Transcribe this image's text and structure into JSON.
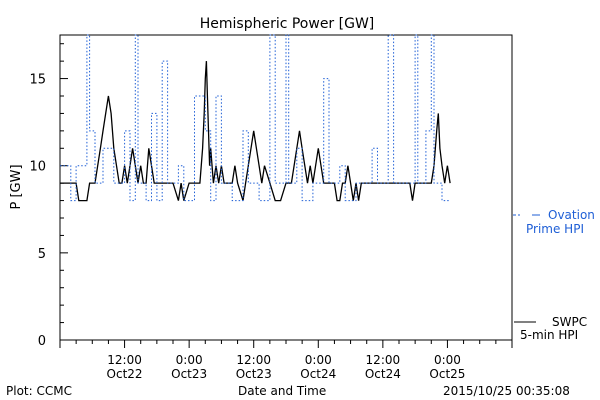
{
  "chart_data": {
    "type": "line",
    "title": "Hemispheric Power [GW]",
    "xlabel": "Date and Time",
    "ylabel": "P [GW]",
    "ylim": [
      0,
      17.5
    ],
    "xlim_hours": [
      0,
      84
    ],
    "y_ticks": [
      "0",
      "5",
      "10",
      "15"
    ],
    "x_ticks": [
      {
        "hour": 12,
        "time": "12:00",
        "date": "Oct22"
      },
      {
        "hour": 24,
        "time": "0:00",
        "date": "Oct23"
      },
      {
        "hour": 36,
        "time": "12:00",
        "date": "Oct23"
      },
      {
        "hour": 48,
        "time": "0:00",
        "date": "Oct24"
      },
      {
        "hour": 60,
        "time": "12:00",
        "date": "Oct24"
      },
      {
        "hour": 72,
        "time": "0:00",
        "date": "Oct25"
      }
    ],
    "grid": false,
    "legend_placement": "right",
    "series": [
      {
        "name_lines": [
          "SWPC",
          "5-min HPI"
        ],
        "color": "#000000",
        "style": "solid",
        "points": [
          [
            0,
            9
          ],
          [
            3,
            9
          ],
          [
            3.5,
            8
          ],
          [
            5,
            8
          ],
          [
            5.5,
            9
          ],
          [
            6.5,
            9
          ],
          [
            7,
            10
          ],
          [
            7.5,
            11
          ],
          [
            8,
            12
          ],
          [
            8.5,
            13
          ],
          [
            9,
            14
          ],
          [
            9.5,
            13
          ],
          [
            10,
            11
          ],
          [
            10.5,
            10
          ],
          [
            11,
            9
          ],
          [
            11.5,
            9
          ],
          [
            12,
            10
          ],
          [
            12.5,
            9
          ],
          [
            13,
            10
          ],
          [
            13.5,
            11
          ],
          [
            14,
            10
          ],
          [
            14.5,
            9
          ],
          [
            15,
            10
          ],
          [
            15.5,
            9
          ],
          [
            16,
            9
          ],
          [
            16.5,
            11
          ],
          [
            17,
            10
          ],
          [
            17.5,
            9
          ],
          [
            18,
            9
          ],
          [
            18.5,
            9
          ],
          [
            19,
            9
          ],
          [
            20,
            9
          ],
          [
            21,
            9
          ],
          [
            22,
            8
          ],
          [
            22.5,
            9
          ],
          [
            23,
            8
          ],
          [
            24,
            9
          ],
          [
            25,
            9
          ],
          [
            26,
            9
          ],
          [
            26.5,
            11
          ],
          [
            26.8,
            13
          ],
          [
            27,
            15
          ],
          [
            27.2,
            16
          ],
          [
            27.4,
            14
          ],
          [
            27.6,
            12
          ],
          [
            27.8,
            10
          ],
          [
            28,
            11
          ],
          [
            28.5,
            9
          ],
          [
            29,
            10
          ],
          [
            29.5,
            9
          ],
          [
            30,
            10
          ],
          [
            30.5,
            9
          ],
          [
            31,
            9
          ],
          [
            32,
            9
          ],
          [
            32.5,
            10
          ],
          [
            33,
            9
          ],
          [
            34,
            8
          ],
          [
            34.5,
            9
          ],
          [
            35,
            10
          ],
          [
            35.5,
            11
          ],
          [
            36,
            12
          ],
          [
            36.5,
            11
          ],
          [
            37,
            10
          ],
          [
            37.5,
            9
          ],
          [
            38,
            10
          ],
          [
            39,
            9
          ],
          [
            40,
            8
          ],
          [
            41,
            8
          ],
          [
            42,
            9
          ],
          [
            43,
            9
          ],
          [
            43.5,
            10
          ],
          [
            44,
            11
          ],
          [
            44.5,
            12
          ],
          [
            45,
            11
          ],
          [
            45.5,
            10
          ],
          [
            46,
            9
          ],
          [
            46.5,
            10
          ],
          [
            47,
            9
          ],
          [
            48,
            11
          ],
          [
            48.5,
            10
          ],
          [
            49,
            9
          ],
          [
            50,
            9
          ],
          [
            51,
            9
          ],
          [
            51.5,
            8
          ],
          [
            52,
            8
          ],
          [
            52.5,
            9
          ],
          [
            53,
            9
          ],
          [
            53.5,
            10
          ],
          [
            54,
            9
          ],
          [
            54.5,
            8
          ],
          [
            55,
            9
          ],
          [
            55.5,
            8
          ],
          [
            56,
            9
          ],
          [
            57,
            9
          ],
          [
            58,
            9
          ],
          [
            60,
            9
          ],
          [
            62,
            9
          ],
          [
            64,
            9
          ],
          [
            65,
            9
          ],
          [
            65.5,
            8
          ],
          [
            66,
            9
          ],
          [
            67,
            9
          ],
          [
            68,
            9
          ],
          [
            69,
            9
          ],
          [
            69.5,
            10
          ],
          [
            70,
            12
          ],
          [
            70.3,
            13
          ],
          [
            70.6,
            11
          ],
          [
            71,
            10
          ],
          [
            71.5,
            9
          ],
          [
            72,
            10
          ],
          [
            72.5,
            9
          ]
        ]
      },
      {
        "name_lines": [
          "Ovation",
          "Prime HPI"
        ],
        "color": "#1f5fd6",
        "style": "dashed",
        "points": [
          [
            0,
            10
          ],
          [
            2,
            10
          ],
          [
            2,
            8
          ],
          [
            3,
            8
          ],
          [
            3,
            10
          ],
          [
            5,
            10
          ],
          [
            5,
            17.5
          ],
          [
            5.5,
            17.5
          ],
          [
            5.5,
            12
          ],
          [
            6.5,
            12
          ],
          [
            6.5,
            9
          ],
          [
            8,
            9
          ],
          [
            8,
            11
          ],
          [
            10,
            11
          ],
          [
            10,
            9
          ],
          [
            12,
            9
          ],
          [
            12,
            12
          ],
          [
            13,
            12
          ],
          [
            13,
            8
          ],
          [
            14,
            8
          ],
          [
            14,
            17.5
          ],
          [
            14.5,
            17.5
          ],
          [
            14.5,
            9
          ],
          [
            16,
            9
          ],
          [
            16,
            8
          ],
          [
            17,
            8
          ],
          [
            17,
            13
          ],
          [
            18,
            13
          ],
          [
            18,
            8
          ],
          [
            19,
            8
          ],
          [
            19,
            16
          ],
          [
            20,
            16
          ],
          [
            20,
            9
          ],
          [
            22,
            9
          ],
          [
            22,
            10
          ],
          [
            23,
            10
          ],
          [
            23,
            8
          ],
          [
            25,
            8
          ],
          [
            25,
            14
          ],
          [
            27,
            14
          ],
          [
            27,
            12
          ],
          [
            28,
            12
          ],
          [
            28,
            8
          ],
          [
            29,
            8
          ],
          [
            29,
            14
          ],
          [
            30,
            14
          ],
          [
            30,
            9
          ],
          [
            32,
            9
          ],
          [
            32,
            8
          ],
          [
            34,
            8
          ],
          [
            34,
            12
          ],
          [
            35,
            12
          ],
          [
            35,
            9
          ],
          [
            37,
            9
          ],
          [
            37,
            8
          ],
          [
            39,
            8
          ],
          [
            39,
            17.5
          ],
          [
            40,
            17.5
          ],
          [
            40,
            9
          ],
          [
            42,
            9
          ],
          [
            42,
            17.5
          ],
          [
            42.5,
            17.5
          ],
          [
            42.5,
            9
          ],
          [
            44,
            9
          ],
          [
            44,
            11
          ],
          [
            45,
            11
          ],
          [
            45,
            8
          ],
          [
            47,
            8
          ],
          [
            47,
            9
          ],
          [
            49,
            9
          ],
          [
            49,
            15
          ],
          [
            50,
            15
          ],
          [
            50,
            9
          ],
          [
            52,
            9
          ],
          [
            52,
            10
          ],
          [
            53,
            10
          ],
          [
            53,
            8
          ],
          [
            55,
            8
          ],
          [
            55,
            9
          ],
          [
            58,
            9
          ],
          [
            58,
            11
          ],
          [
            59,
            11
          ],
          [
            59,
            9
          ],
          [
            61,
            9
          ],
          [
            61,
            17.5
          ],
          [
            62,
            17.5
          ],
          [
            62,
            9
          ],
          [
            64,
            9
          ],
          [
            64,
            9
          ],
          [
            66,
            9
          ],
          [
            66,
            17.5
          ],
          [
            66.5,
            17.5
          ],
          [
            66.5,
            9
          ],
          [
            68,
            9
          ],
          [
            68,
            12
          ],
          [
            69,
            12
          ],
          [
            69,
            17.5
          ],
          [
            69.5,
            17.5
          ],
          [
            69.5,
            9
          ],
          [
            71,
            9
          ],
          [
            71,
            8
          ],
          [
            72.5,
            8
          ]
        ]
      }
    ],
    "footer": {
      "left": "Plot: CCMC",
      "center": "Date and Time",
      "right": "2015/10/25 00:35:08"
    }
  }
}
